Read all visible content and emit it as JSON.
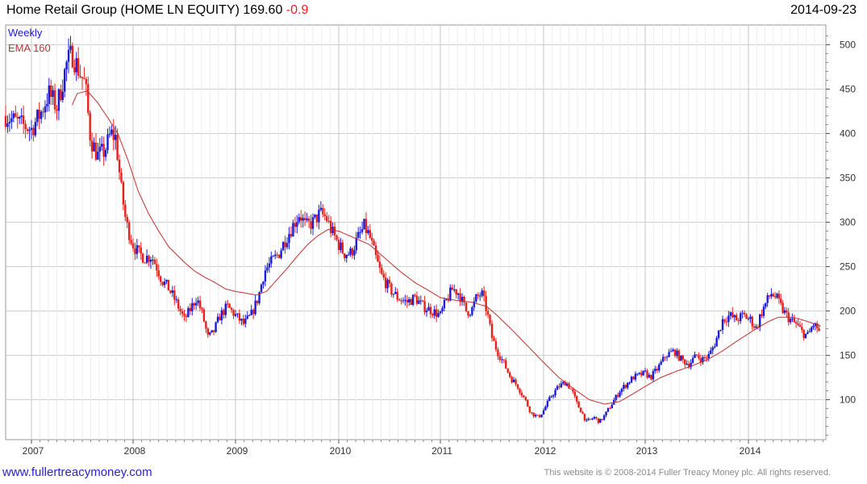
{
  "header": {
    "title": "Home Retail Group (HOME LN EQUITY) 169.60",
    "change": "-0.9",
    "date": "2014-09-23"
  },
  "footer": {
    "url": "www.fullertreacymoney.com",
    "copyright": "This website is © 2008-2014 Fuller Treacy Money plc. All rights reserved."
  },
  "chart_data": {
    "type": "candlestick",
    "legend": [
      "Weekly",
      "EMA 160"
    ],
    "legend_position": "top-left",
    "x_ticks": [
      "2007",
      "2008",
      "2009",
      "2010",
      "2011",
      "2012",
      "2013",
      "2014"
    ],
    "y_ticks": [
      100,
      150,
      200,
      250,
      300,
      350,
      400,
      450,
      500
    ],
    "y_axis_side": "right",
    "ylim": [
      55,
      515
    ],
    "xlim": [
      2006.75,
      2014.78
    ],
    "grid": true,
    "colors": {
      "up": "#1a1ad8",
      "down": "#e8201a",
      "ema": "#c42e2e",
      "grid": "#cfcfcf",
      "legend_weekly": "#1a1ad8",
      "legend_ema": "#b03a3a"
    },
    "price_path": [
      [
        2006.75,
        420
      ],
      [
        2006.9,
        410
      ],
      [
        2007.0,
        405
      ],
      [
        2007.1,
        425
      ],
      [
        2007.17,
        445
      ],
      [
        2007.25,
        430
      ],
      [
        2007.3,
        455
      ],
      [
        2007.35,
        480
      ],
      [
        2007.4,
        490
      ],
      [
        2007.47,
        470
      ],
      [
        2007.53,
        455
      ],
      [
        2007.58,
        395
      ],
      [
        2007.65,
        375
      ],
      [
        2007.72,
        380
      ],
      [
        2007.78,
        400
      ],
      [
        2007.83,
        395
      ],
      [
        2007.88,
        340
      ],
      [
        2007.93,
        300
      ],
      [
        2007.97,
        285
      ],
      [
        2008.0,
        275
      ],
      [
        2008.05,
        265
      ],
      [
        2008.12,
        260
      ],
      [
        2008.18,
        262
      ],
      [
        2008.23,
        250
      ],
      [
        2008.28,
        235
      ],
      [
        2008.35,
        225
      ],
      [
        2008.42,
        210
      ],
      [
        2008.5,
        190
      ],
      [
        2008.55,
        200
      ],
      [
        2008.62,
        215
      ],
      [
        2008.68,
        195
      ],
      [
        2008.73,
        170
      ],
      [
        2008.78,
        175
      ],
      [
        2008.85,
        195
      ],
      [
        2008.92,
        205
      ],
      [
        2009.0,
        195
      ],
      [
        2009.08,
        185
      ],
      [
        2009.15,
        195
      ],
      [
        2009.22,
        215
      ],
      [
        2009.28,
        245
      ],
      [
        2009.35,
        255
      ],
      [
        2009.42,
        265
      ],
      [
        2009.48,
        280
      ],
      [
        2009.55,
        295
      ],
      [
        2009.62,
        310
      ],
      [
        2009.68,
        295
      ],
      [
        2009.75,
        300
      ],
      [
        2009.82,
        310
      ],
      [
        2009.88,
        305
      ],
      [
        2009.93,
        290
      ],
      [
        2010.0,
        275
      ],
      [
        2010.05,
        265
      ],
      [
        2010.12,
        265
      ],
      [
        2010.18,
        280
      ],
      [
        2010.25,
        295
      ],
      [
        2010.3,
        285
      ],
      [
        2010.35,
        265
      ],
      [
        2010.42,
        240
      ],
      [
        2010.5,
        225
      ],
      [
        2010.58,
        215
      ],
      [
        2010.67,
        210
      ],
      [
        2010.75,
        215
      ],
      [
        2010.83,
        205
      ],
      [
        2010.92,
        200
      ],
      [
        2011.0,
        195
      ],
      [
        2011.05,
        210
      ],
      [
        2011.12,
        225
      ],
      [
        2011.18,
        220
      ],
      [
        2011.25,
        200
      ],
      [
        2011.3,
        200
      ],
      [
        2011.35,
        215
      ],
      [
        2011.4,
        220
      ],
      [
        2011.45,
        200
      ],
      [
        2011.5,
        170
      ],
      [
        2011.55,
        155
      ],
      [
        2011.62,
        140
      ],
      [
        2011.68,
        125
      ],
      [
        2011.75,
        115
      ],
      [
        2011.82,
        100
      ],
      [
        2011.88,
        85
      ],
      [
        2011.95,
        80
      ],
      [
        2012.0,
        88
      ],
      [
        2012.08,
        105
      ],
      [
        2012.15,
        115
      ],
      [
        2012.22,
        120
      ],
      [
        2012.28,
        110
      ],
      [
        2012.33,
        95
      ],
      [
        2012.38,
        85
      ],
      [
        2012.42,
        75
      ],
      [
        2012.5,
        80
      ],
      [
        2012.55,
        75
      ],
      [
        2012.6,
        82
      ],
      [
        2012.67,
        95
      ],
      [
        2012.75,
        110
      ],
      [
        2012.82,
        118
      ],
      [
        2012.88,
        125
      ],
      [
        2012.95,
        128
      ],
      [
        2013.0,
        130
      ],
      [
        2013.05,
        125
      ],
      [
        2013.12,
        135
      ],
      [
        2013.2,
        150
      ],
      [
        2013.28,
        155
      ],
      [
        2013.35,
        145
      ],
      [
        2013.42,
        140
      ],
      [
        2013.5,
        150
      ],
      [
        2013.55,
        145
      ],
      [
        2013.62,
        150
      ],
      [
        2013.68,
        165
      ],
      [
        2013.75,
        190
      ],
      [
        2013.82,
        195
      ],
      [
        2013.88,
        190
      ],
      [
        2013.95,
        195
      ],
      [
        2014.02,
        190
      ],
      [
        2014.08,
        180
      ],
      [
        2014.12,
        195
      ],
      [
        2014.18,
        210
      ],
      [
        2014.23,
        220
      ],
      [
        2014.28,
        215
      ],
      [
        2014.35,
        200
      ],
      [
        2014.42,
        190
      ],
      [
        2014.48,
        185
      ],
      [
        2014.55,
        175
      ],
      [
        2014.6,
        172
      ],
      [
        2014.65,
        185
      ],
      [
        2014.7,
        180
      ],
      [
        2014.73,
        170
      ]
    ],
    "ema_path": [
      [
        2007.4,
        432
      ],
      [
        2007.45,
        445
      ],
      [
        2007.55,
        448
      ],
      [
        2007.65,
        435
      ],
      [
        2007.75,
        418
      ],
      [
        2007.85,
        400
      ],
      [
        2007.95,
        370
      ],
      [
        2008.05,
        335
      ],
      [
        2008.15,
        310
      ],
      [
        2008.25,
        290
      ],
      [
        2008.35,
        272
      ],
      [
        2008.5,
        255
      ],
      [
        2008.6,
        245
      ],
      [
        2008.7,
        238
      ],
      [
        2008.8,
        232
      ],
      [
        2008.9,
        225
      ],
      [
        2009.0,
        222
      ],
      [
        2009.1,
        220
      ],
      [
        2009.2,
        218
      ],
      [
        2009.3,
        222
      ],
      [
        2009.4,
        235
      ],
      [
        2009.5,
        248
      ],
      [
        2009.6,
        262
      ],
      [
        2009.7,
        275
      ],
      [
        2009.8,
        285
      ],
      [
        2009.9,
        292
      ],
      [
        2010.0,
        290
      ],
      [
        2010.1,
        285
      ],
      [
        2010.2,
        280
      ],
      [
        2010.3,
        275
      ],
      [
        2010.45,
        260
      ],
      [
        2010.6,
        245
      ],
      [
        2010.75,
        232
      ],
      [
        2010.9,
        222
      ],
      [
        2011.0,
        215
      ],
      [
        2011.15,
        212
      ],
      [
        2011.3,
        210
      ],
      [
        2011.45,
        205
      ],
      [
        2011.55,
        195
      ],
      [
        2011.7,
        178
      ],
      [
        2011.85,
        160
      ],
      [
        2012.0,
        142
      ],
      [
        2012.15,
        125
      ],
      [
        2012.3,
        112
      ],
      [
        2012.45,
        100
      ],
      [
        2012.6,
        95
      ],
      [
        2012.75,
        98
      ],
      [
        2012.9,
        108
      ],
      [
        2013.0,
        115
      ],
      [
        2013.15,
        125
      ],
      [
        2013.3,
        132
      ],
      [
        2013.45,
        138
      ],
      [
        2013.6,
        145
      ],
      [
        2013.75,
        155
      ],
      [
        2013.9,
        167
      ],
      [
        2014.05,
        178
      ],
      [
        2014.2,
        188
      ],
      [
        2014.3,
        193
      ],
      [
        2014.45,
        193
      ],
      [
        2014.6,
        188
      ],
      [
        2014.73,
        183
      ]
    ]
  }
}
